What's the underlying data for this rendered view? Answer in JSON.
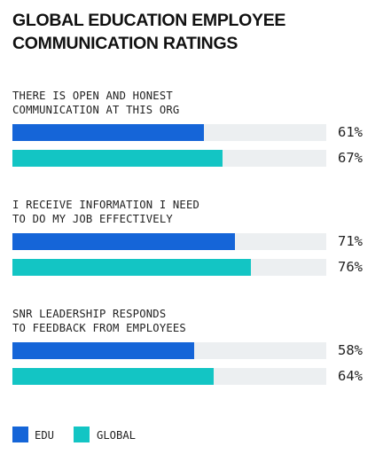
{
  "chart_data": {
    "type": "bar",
    "orientation": "horizontal",
    "title": "GLOBAL EDUCATION EMPLOYEE COMMUNICATION RATINGS",
    "categories": [
      "THERE IS OPEN AND HONEST COMMUNICATION AT THIS ORG",
      "I RECEIVE INFORMATION I NEED TO DO MY JOB EFFECTIVELY",
      "SNR LEADERSHIP RESPONDS TO FEEDBACK FROM EMPLOYEES"
    ],
    "category_lines": [
      [
        "THERE IS OPEN AND HONEST",
        "COMMUNICATION AT THIS ORG"
      ],
      [
        "I RECEIVE INFORMATION I NEED",
        "TO DO MY JOB EFFECTIVELY"
      ],
      [
        "SNR LEADERSHIP RESPONDS",
        "TO FEEDBACK FROM EMPLOYEES"
      ]
    ],
    "series": [
      {
        "name": "EDU",
        "color": "#1565d8",
        "values": [
          61,
          71,
          58
        ],
        "labels": [
          "61%",
          "71%",
          "58%"
        ]
      },
      {
        "name": "GLOBAL",
        "color": "#13c5c4",
        "values": [
          67,
          76,
          64
        ],
        "labels": [
          "67%",
          "76%",
          "64%"
        ]
      }
    ],
    "xlim": [
      0,
      100
    ],
    "track_color": "#eceff1",
    "grid": false,
    "legend_position": "bottom-left"
  }
}
